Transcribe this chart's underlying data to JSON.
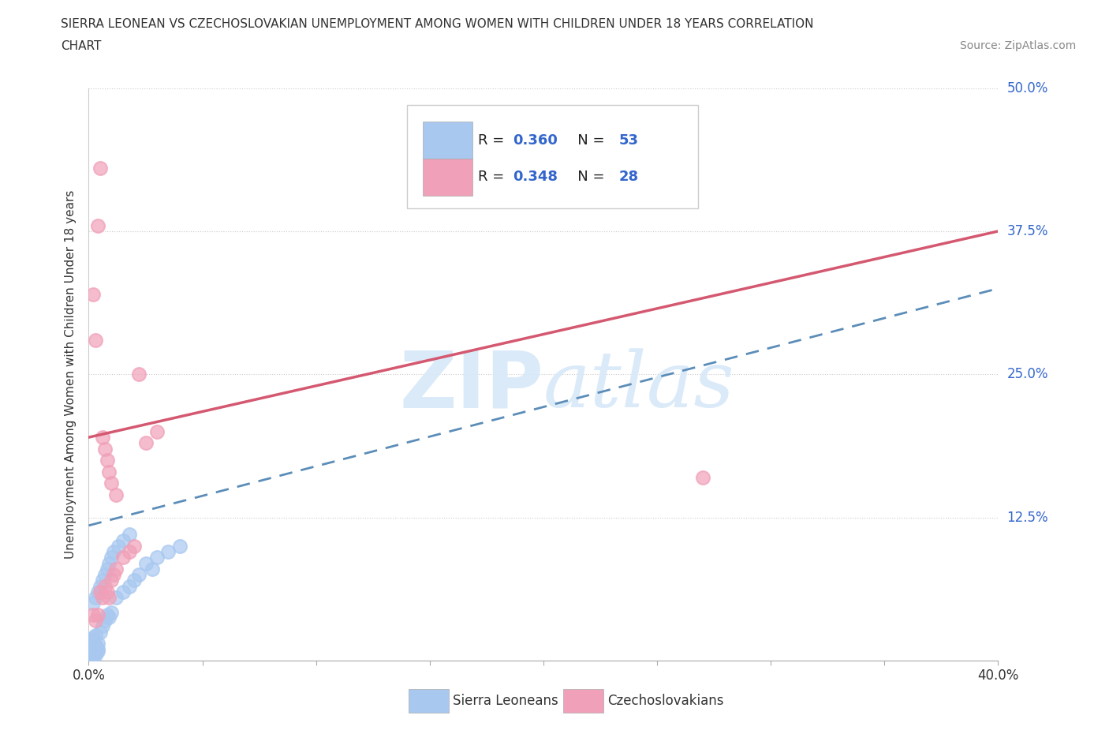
{
  "title_line1": "SIERRA LEONEAN VS CZECHOSLOVAKIAN UNEMPLOYMENT AMONG WOMEN WITH CHILDREN UNDER 18 YEARS CORRELATION",
  "title_line2": "CHART",
  "source_text": "Source: ZipAtlas.com",
  "ylabel": "Unemployment Among Women with Children Under 18 years",
  "xlim": [
    0.0,
    0.4
  ],
  "ylim": [
    0.0,
    0.5
  ],
  "xticks": [
    0.0,
    0.05,
    0.1,
    0.15,
    0.2,
    0.25,
    0.3,
    0.35,
    0.4
  ],
  "yticks": [
    0.0,
    0.125,
    0.25,
    0.375,
    0.5
  ],
  "ytick_labels": [
    "",
    "12.5%",
    "25.0%",
    "37.5%",
    "50.0%"
  ],
  "grid_color": "#cccccc",
  "background_color": "#ffffff",
  "sierra_color": "#a8c8f0",
  "czech_color": "#f0a0b8",
  "sierra_line_color": "#5b8db8",
  "czech_line_color": "#d45870",
  "watermark_color": "#d8e8f8",
  "sl_x": [
    0.001,
    0.002,
    0.001,
    0.002,
    0.003,
    0.002,
    0.001,
    0.003,
    0.002,
    0.001,
    0.004,
    0.003,
    0.002,
    0.001,
    0.003,
    0.002,
    0.001,
    0.004,
    0.002,
    0.003,
    0.001,
    0.002,
    0.003,
    0.004,
    0.005,
    0.006,
    0.007,
    0.008,
    0.009,
    0.01,
    0.012,
    0.015,
    0.018,
    0.02,
    0.022,
    0.025,
    0.028,
    0.03,
    0.035,
    0.04,
    0.002,
    0.003,
    0.004,
    0.005,
    0.006,
    0.007,
    0.008,
    0.009,
    0.01,
    0.011,
    0.013,
    0.015,
    0.018
  ],
  "sl_y": [
    0.005,
    0.008,
    0.01,
    0.006,
    0.007,
    0.012,
    0.015,
    0.009,
    0.004,
    0.011,
    0.008,
    0.013,
    0.006,
    0.009,
    0.014,
    0.007,
    0.012,
    0.01,
    0.016,
    0.005,
    0.018,
    0.02,
    0.022,
    0.015,
    0.025,
    0.03,
    0.035,
    0.04,
    0.038,
    0.042,
    0.055,
    0.06,
    0.065,
    0.07,
    0.075,
    0.085,
    0.08,
    0.09,
    0.095,
    0.1,
    0.05,
    0.055,
    0.06,
    0.065,
    0.07,
    0.075,
    0.08,
    0.085,
    0.09,
    0.095,
    0.1,
    0.105,
    0.11
  ],
  "cz_x": [
    0.002,
    0.003,
    0.004,
    0.005,
    0.006,
    0.007,
    0.008,
    0.009,
    0.01,
    0.011,
    0.012,
    0.015,
    0.018,
    0.02,
    0.022,
    0.025,
    0.03,
    0.27,
    0.002,
    0.003,
    0.004,
    0.005,
    0.006,
    0.007,
    0.008,
    0.009,
    0.01,
    0.012
  ],
  "cz_y": [
    0.04,
    0.035,
    0.04,
    0.06,
    0.055,
    0.065,
    0.06,
    0.055,
    0.07,
    0.075,
    0.08,
    0.09,
    0.095,
    0.1,
    0.25,
    0.19,
    0.2,
    0.16,
    0.32,
    0.28,
    0.38,
    0.43,
    0.195,
    0.185,
    0.175,
    0.165,
    0.155,
    0.145
  ],
  "sl_line_x0": 0.0,
  "sl_line_y0": 0.118,
  "sl_line_x1": 0.4,
  "sl_line_y1": 0.325,
  "cz_line_x0": 0.0,
  "cz_line_y0": 0.195,
  "cz_line_x1": 0.4,
  "cz_line_y1": 0.375
}
